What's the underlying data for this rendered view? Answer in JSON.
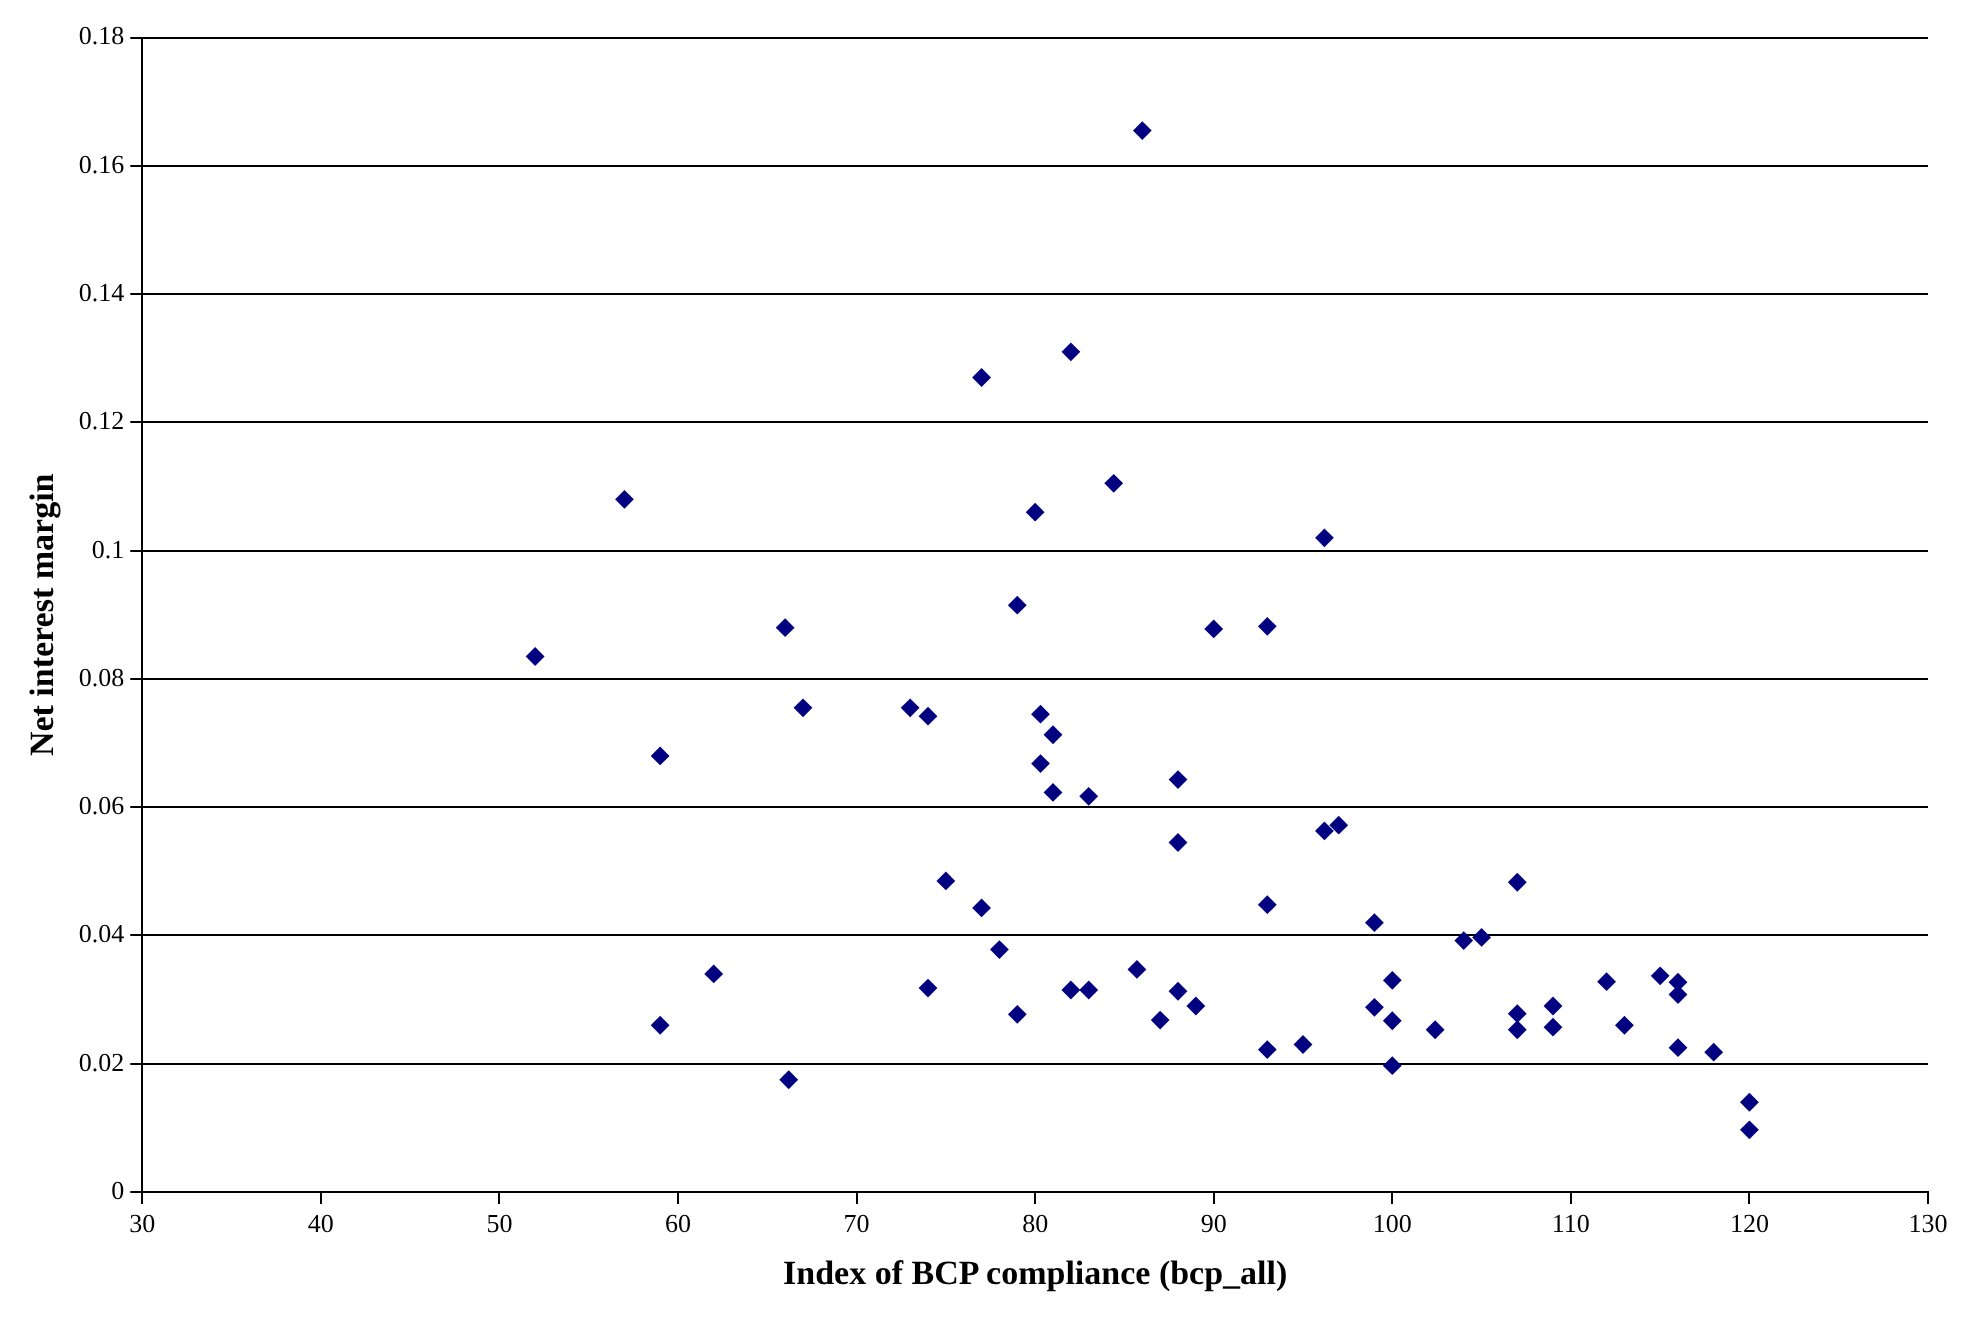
{
  "chart_data": {
    "type": "scatter",
    "xlabel": "Index of BCP compliance (bcp_all)",
    "ylabel": "Net interest margin",
    "x": [
      52,
      57,
      59,
      59,
      62,
      66,
      66.2,
      67,
      73,
      74,
      74,
      75,
      77,
      77,
      78,
      79,
      79,
      80,
      80.3,
      80.3,
      81,
      81,
      82,
      82,
      83,
      83,
      84.4,
      85.7,
      86,
      87,
      88,
      88,
      88,
      89,
      90,
      93,
      93,
      93,
      95,
      96.2,
      96.2,
      97,
      99,
      99,
      100,
      100,
      100,
      102.4,
      104,
      105,
      107,
      107,
      107,
      109,
      109,
      112,
      113,
      115,
      116,
      116,
      116,
      118,
      120,
      120
    ],
    "series": [
      {
        "color": "#000080",
        "values": [
          0.0835,
          0.108,
          0.068,
          0.026,
          0.034,
          0.088,
          0.0175,
          0.0755,
          0.0755,
          0.0742,
          0.0318,
          0.0485,
          0.127,
          0.0443,
          0.0378,
          0.0915,
          0.0277,
          0.106,
          0.0745,
          0.0668,
          0.0713,
          0.0623,
          0.131,
          0.0315,
          0.0617,
          0.0315,
          0.1105,
          0.0347,
          0.1655,
          0.0268,
          0.0643,
          0.0545,
          0.0313,
          0.029,
          0.0878,
          0.0882,
          0.0448,
          0.0222,
          0.023,
          0.102,
          0.0563,
          0.0572,
          0.042,
          0.0288,
          0.033,
          0.0267,
          0.0197,
          0.0253,
          0.0392,
          0.0397,
          0.0483,
          0.0278,
          0.0253,
          0.029,
          0.0257,
          0.0328,
          0.026,
          0.0337,
          0.0327,
          0.0308,
          0.0225,
          0.0218,
          0.014,
          0.0097
        ]
      }
    ],
    "xlim": [
      30,
      130
    ],
    "xticks": [
      30,
      40,
      50,
      60,
      70,
      80,
      90,
      100,
      110,
      120,
      130
    ],
    "ylim": [
      0,
      0.18
    ],
    "yticks": [
      0,
      0.02,
      0.04,
      0.06,
      0.08,
      0.1,
      0.12,
      0.14,
      0.16,
      0.18
    ],
    "grid": "y",
    "marker": "diamond",
    "legend": false
  }
}
